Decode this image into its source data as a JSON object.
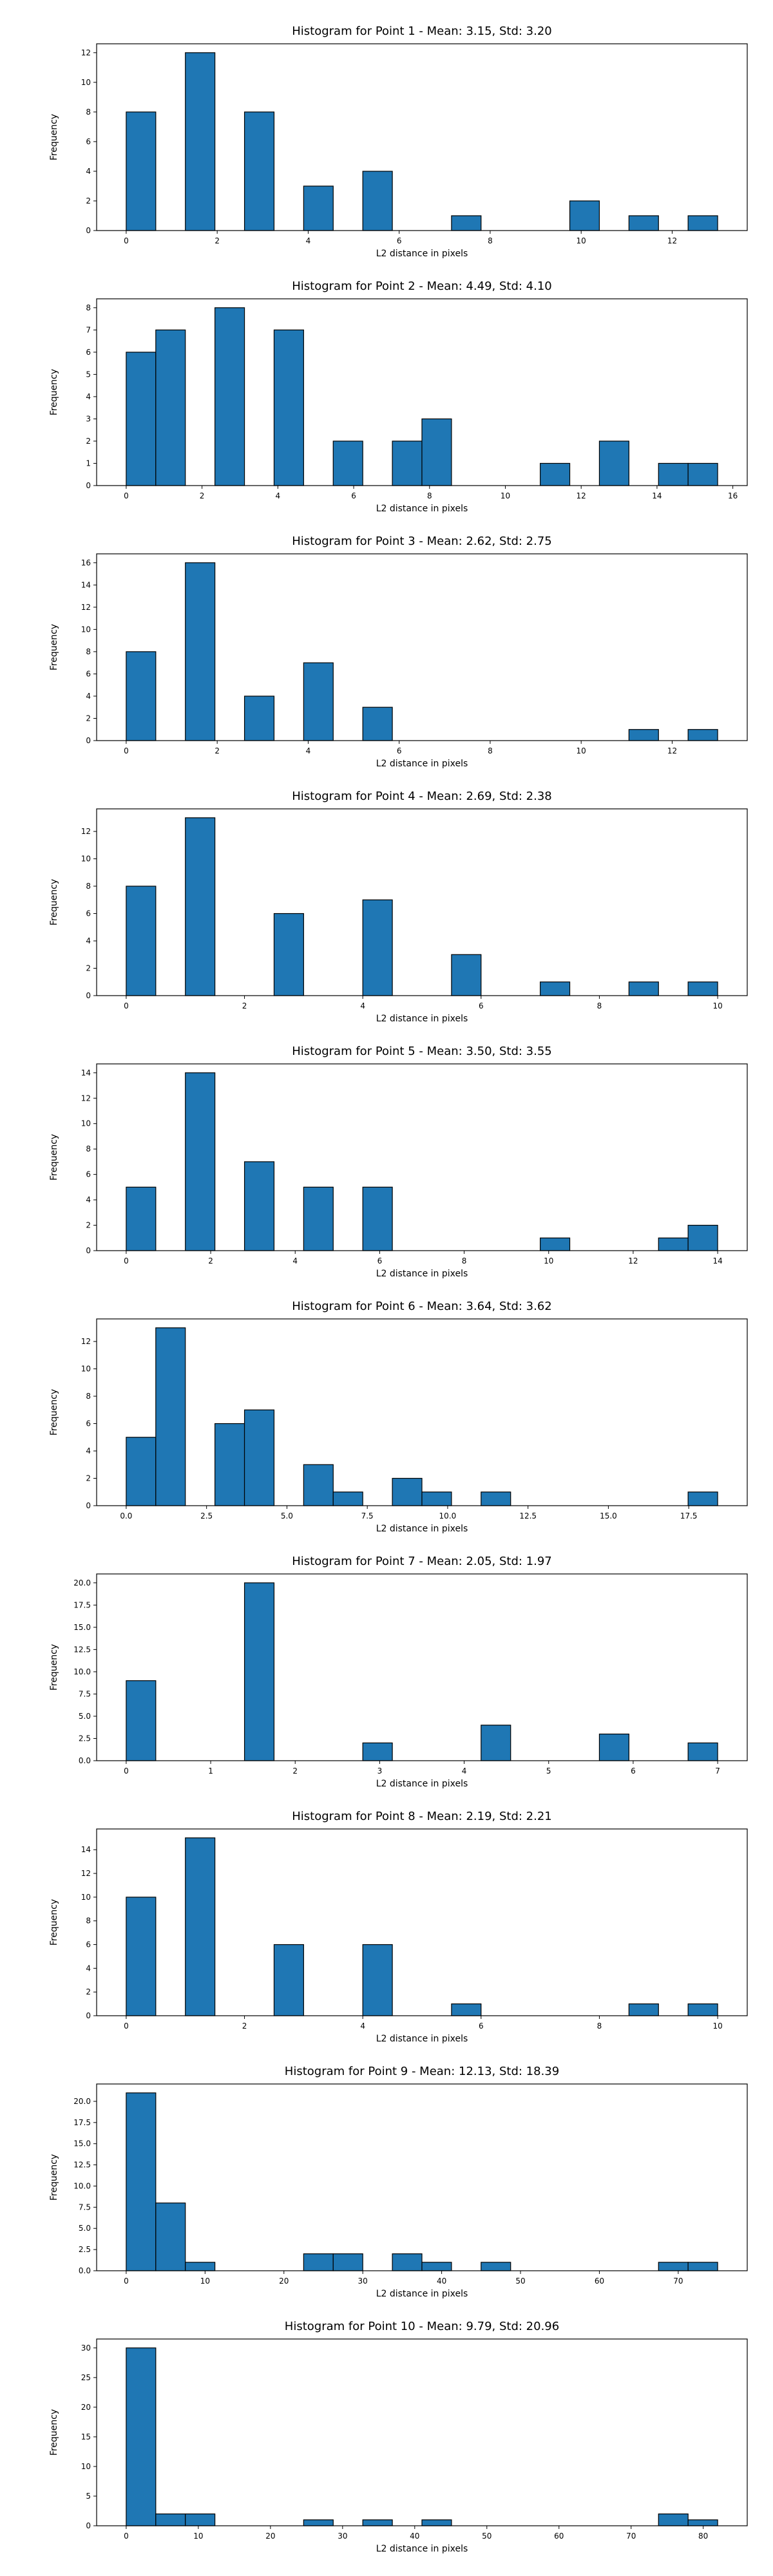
{
  "chart_data": [
    {
      "type": "bar",
      "title": "Histogram for Point 1 - Mean: 3.15, Std: 3.20",
      "xlabel": "L2 distance in pixels",
      "ylabel": "Frequency",
      "xlim": [
        -0.65,
        13.65
      ],
      "ylim": [
        0,
        12.6
      ],
      "xticks": [
        0,
        2,
        4,
        6,
        8,
        10,
        12
      ],
      "xtick_labels": [
        "0",
        "2",
        "4",
        "6",
        "8",
        "10",
        "12"
      ],
      "yticks": [
        0,
        2,
        4,
        6,
        8,
        10,
        12
      ],
      "ytick_labels": [
        "0",
        "2",
        "4",
        "6",
        "8",
        "10",
        "12"
      ],
      "bins": [
        {
          "x0": 0,
          "x1": 0.65,
          "count": 8
        },
        {
          "x0": 1.3,
          "x1": 1.95,
          "count": 12
        },
        {
          "x0": 2.6,
          "x1": 3.25,
          "count": 8
        },
        {
          "x0": 3.9,
          "x1": 4.55,
          "count": 3
        },
        {
          "x0": 5.2,
          "x1": 5.85,
          "count": 4
        },
        {
          "x0": 7.15,
          "x1": 7.8,
          "count": 1
        },
        {
          "x0": 9.75,
          "x1": 10.4,
          "count": 2
        },
        {
          "x0": 11.05,
          "x1": 11.7,
          "count": 1
        },
        {
          "x0": 12.35,
          "x1": 13.0,
          "count": 1
        }
      ]
    },
    {
      "type": "bar",
      "title": "Histogram for Point 2 - Mean: 4.49, Std: 4.10",
      "xlabel": "L2 distance in pixels",
      "ylabel": "Frequency",
      "xlim": [
        -0.78,
        16.38
      ],
      "ylim": [
        0,
        8.4
      ],
      "xticks": [
        0,
        2,
        4,
        6,
        8,
        10,
        12,
        14,
        16
      ],
      "xtick_labels": [
        "0",
        "2",
        "4",
        "6",
        "8",
        "10",
        "12",
        "14",
        "16"
      ],
      "yticks": [
        0,
        1,
        2,
        3,
        4,
        5,
        6,
        7,
        8
      ],
      "ytick_labels": [
        "0",
        "1",
        "2",
        "3",
        "4",
        "5",
        "6",
        "7",
        "8"
      ],
      "bins": [
        {
          "x0": 0,
          "x1": 0.78,
          "count": 6
        },
        {
          "x0": 0.78,
          "x1": 1.56,
          "count": 7
        },
        {
          "x0": 2.34,
          "x1": 3.12,
          "count": 8
        },
        {
          "x0": 3.9,
          "x1": 4.68,
          "count": 7
        },
        {
          "x0": 5.46,
          "x1": 6.24,
          "count": 2
        },
        {
          "x0": 7.02,
          "x1": 7.8,
          "count": 2
        },
        {
          "x0": 7.8,
          "x1": 8.58,
          "count": 3
        },
        {
          "x0": 10.92,
          "x1": 11.7,
          "count": 1
        },
        {
          "x0": 12.48,
          "x1": 13.26,
          "count": 2
        },
        {
          "x0": 14.04,
          "x1": 14.82,
          "count": 1
        },
        {
          "x0": 14.82,
          "x1": 15.6,
          "count": 1
        }
      ]
    },
    {
      "type": "bar",
      "title": "Histogram for Point 3 - Mean: 2.62, Std: 2.75",
      "xlabel": "L2 distance in pixels",
      "ylabel": "Frequency",
      "xlim": [
        -0.65,
        13.65
      ],
      "ylim": [
        0,
        16.8
      ],
      "xticks": [
        0,
        2,
        4,
        6,
        8,
        10,
        12
      ],
      "xtick_labels": [
        "0",
        "2",
        "4",
        "6",
        "8",
        "10",
        "12"
      ],
      "yticks": [
        0,
        2,
        4,
        6,
        8,
        10,
        12,
        14,
        16
      ],
      "ytick_labels": [
        "0",
        "2",
        "4",
        "6",
        "8",
        "10",
        "12",
        "14",
        "16"
      ],
      "bins": [
        {
          "x0": 0,
          "x1": 0.65,
          "count": 8
        },
        {
          "x0": 1.3,
          "x1": 1.95,
          "count": 16
        },
        {
          "x0": 2.6,
          "x1": 3.25,
          "count": 4
        },
        {
          "x0": 3.9,
          "x1": 4.55,
          "count": 7
        },
        {
          "x0": 5.2,
          "x1": 5.85,
          "count": 3
        },
        {
          "x0": 11.05,
          "x1": 11.7,
          "count": 1
        },
        {
          "x0": 12.35,
          "x1": 13.0,
          "count": 1
        }
      ]
    },
    {
      "type": "bar",
      "title": "Histogram for Point 4 - Mean: 2.69, Std: 2.38",
      "xlabel": "L2 distance in pixels",
      "ylabel": "Frequency",
      "xlim": [
        -0.5,
        10.5
      ],
      "ylim": [
        0,
        13.65
      ],
      "xticks": [
        0,
        2,
        4,
        6,
        8,
        10
      ],
      "xtick_labels": [
        "0",
        "2",
        "4",
        "6",
        "8",
        "10"
      ],
      "yticks": [
        0,
        2,
        4,
        6,
        8,
        10,
        12
      ],
      "ytick_labels": [
        "0",
        "2",
        "4",
        "6",
        "8",
        "10",
        "12"
      ],
      "bins": [
        {
          "x0": 0,
          "x1": 0.5,
          "count": 8
        },
        {
          "x0": 1.0,
          "x1": 1.5,
          "count": 13
        },
        {
          "x0": 2.5,
          "x1": 3.0,
          "count": 6
        },
        {
          "x0": 4.0,
          "x1": 4.5,
          "count": 7
        },
        {
          "x0": 5.5,
          "x1": 6.0,
          "count": 3
        },
        {
          "x0": 7.0,
          "x1": 7.5,
          "count": 1
        },
        {
          "x0": 8.5,
          "x1": 9.0,
          "count": 1
        },
        {
          "x0": 9.5,
          "x1": 10.0,
          "count": 1
        }
      ]
    },
    {
      "type": "bar",
      "title": "Histogram for Point 5 - Mean: 3.50, Std: 3.55",
      "xlabel": "L2 distance in pixels",
      "ylabel": "Frequency",
      "xlim": [
        -0.7,
        14.7
      ],
      "ylim": [
        0,
        14.7
      ],
      "xticks": [
        0,
        2,
        4,
        6,
        8,
        10,
        12,
        14
      ],
      "xtick_labels": [
        "0",
        "2",
        "4",
        "6",
        "8",
        "10",
        "12",
        "14"
      ],
      "yticks": [
        0,
        2,
        4,
        6,
        8,
        10,
        12,
        14
      ],
      "ytick_labels": [
        "0",
        "2",
        "4",
        "6",
        "8",
        "10",
        "12",
        "14"
      ],
      "bins": [
        {
          "x0": 0,
          "x1": 0.7,
          "count": 5
        },
        {
          "x0": 1.4,
          "x1": 2.1,
          "count": 14
        },
        {
          "x0": 2.8,
          "x1": 3.5,
          "count": 7
        },
        {
          "x0": 4.2,
          "x1": 4.9,
          "count": 5
        },
        {
          "x0": 5.6,
          "x1": 6.3,
          "count": 5
        },
        {
          "x0": 9.8,
          "x1": 10.5,
          "count": 1
        },
        {
          "x0": 12.6,
          "x1": 13.3,
          "count": 1
        },
        {
          "x0": 13.3,
          "x1": 14.0,
          "count": 2
        }
      ]
    },
    {
      "type": "bar",
      "title": "Histogram for Point 6 - Mean: 3.64, Std: 3.62",
      "xlabel": "L2 distance in pixels",
      "ylabel": "Frequency",
      "xlim": [
        -0.92,
        19.32
      ],
      "ylim": [
        0,
        13.65
      ],
      "xticks": [
        0,
        2.5,
        5,
        7.5,
        10,
        12.5,
        15,
        17.5
      ],
      "xtick_labels": [
        "0.0",
        "2.5",
        "5.0",
        "7.5",
        "10.0",
        "12.5",
        "15.0",
        "17.5"
      ],
      "yticks": [
        0,
        2,
        4,
        6,
        8,
        10,
        12
      ],
      "ytick_labels": [
        "0",
        "2",
        "4",
        "6",
        "8",
        "10",
        "12"
      ],
      "bins": [
        {
          "x0": 0,
          "x1": 0.92,
          "count": 5
        },
        {
          "x0": 0.92,
          "x1": 1.84,
          "count": 13
        },
        {
          "x0": 2.76,
          "x1": 3.68,
          "count": 6
        },
        {
          "x0": 3.68,
          "x1": 4.6,
          "count": 7
        },
        {
          "x0": 5.52,
          "x1": 6.44,
          "count": 3
        },
        {
          "x0": 6.44,
          "x1": 7.36,
          "count": 1
        },
        {
          "x0": 8.28,
          "x1": 9.2,
          "count": 2
        },
        {
          "x0": 9.2,
          "x1": 10.12,
          "count": 1
        },
        {
          "x0": 11.04,
          "x1": 11.96,
          "count": 1
        },
        {
          "x0": 17.48,
          "x1": 18.4,
          "count": 1
        }
      ]
    },
    {
      "type": "bar",
      "title": "Histogram for Point 7 - Mean: 2.05, Std: 1.97",
      "xlabel": "L2 distance in pixels",
      "ylabel": "Frequency",
      "xlim": [
        -0.35,
        7.35
      ],
      "ylim": [
        0,
        21
      ],
      "xticks": [
        0,
        1,
        2,
        3,
        4,
        5,
        6,
        7
      ],
      "xtick_labels": [
        "0",
        "1",
        "2",
        "3",
        "4",
        "5",
        "6",
        "7"
      ],
      "yticks": [
        0,
        2.5,
        5,
        7.5,
        10,
        12.5,
        15,
        17.5,
        20
      ],
      "ytick_labels": [
        "0.0",
        "2.5",
        "5.0",
        "7.5",
        "10.0",
        "12.5",
        "15.0",
        "17.5",
        "20.0"
      ],
      "bins": [
        {
          "x0": 0,
          "x1": 0.35,
          "count": 9
        },
        {
          "x0": 1.4,
          "x1": 1.75,
          "count": 20
        },
        {
          "x0": 2.8,
          "x1": 3.15,
          "count": 2
        },
        {
          "x0": 4.2,
          "x1": 4.55,
          "count": 4
        },
        {
          "x0": 5.6,
          "x1": 5.95,
          "count": 3
        },
        {
          "x0": 6.65,
          "x1": 7.0,
          "count": 2
        }
      ]
    },
    {
      "type": "bar",
      "title": "Histogram for Point 8 - Mean: 2.19, Std: 2.21",
      "xlabel": "L2 distance in pixels",
      "ylabel": "Frequency",
      "xlim": [
        -0.5,
        10.5
      ],
      "ylim": [
        0,
        15.75
      ],
      "xticks": [
        0,
        2,
        4,
        6,
        8,
        10
      ],
      "xtick_labels": [
        "0",
        "2",
        "4",
        "6",
        "8",
        "10"
      ],
      "yticks": [
        0,
        2,
        4,
        6,
        8,
        10,
        12,
        14
      ],
      "ytick_labels": [
        "0",
        "2",
        "4",
        "6",
        "8",
        "10",
        "12",
        "14"
      ],
      "bins": [
        {
          "x0": 0,
          "x1": 0.5,
          "count": 10
        },
        {
          "x0": 1.0,
          "x1": 1.5,
          "count": 15
        },
        {
          "x0": 2.5,
          "x1": 3.0,
          "count": 6
        },
        {
          "x0": 4.0,
          "x1": 4.5,
          "count": 6
        },
        {
          "x0": 5.5,
          "x1": 6.0,
          "count": 1
        },
        {
          "x0": 8.5,
          "x1": 9.0,
          "count": 1
        },
        {
          "x0": 9.5,
          "x1": 10.0,
          "count": 1
        }
      ]
    },
    {
      "type": "bar",
      "title": "Histogram for Point 9 - Mean: 12.13, Std: 18.39",
      "xlabel": "L2 distance in pixels",
      "ylabel": "Frequency",
      "xlim": [
        -3.75,
        78.75
      ],
      "ylim": [
        0,
        22.05
      ],
      "xticks": [
        0,
        10,
        20,
        30,
        40,
        50,
        60,
        70
      ],
      "xtick_labels": [
        "0",
        "10",
        "20",
        "30",
        "40",
        "50",
        "60",
        "70"
      ],
      "yticks": [
        0,
        2.5,
        5,
        7.5,
        10,
        12.5,
        15,
        17.5,
        20
      ],
      "ytick_labels": [
        "0.0",
        "2.5",
        "5.0",
        "7.5",
        "10.0",
        "12.5",
        "15.0",
        "17.5",
        "20.0"
      ],
      "bins": [
        {
          "x0": 0,
          "x1": 3.75,
          "count": 21
        },
        {
          "x0": 3.75,
          "x1": 7.5,
          "count": 8
        },
        {
          "x0": 7.5,
          "x1": 11.25,
          "count": 1
        },
        {
          "x0": 22.5,
          "x1": 26.25,
          "count": 2
        },
        {
          "x0": 26.25,
          "x1": 30.0,
          "count": 2
        },
        {
          "x0": 33.75,
          "x1": 37.5,
          "count": 2
        },
        {
          "x0": 37.5,
          "x1": 41.25,
          "count": 1
        },
        {
          "x0": 45.0,
          "x1": 48.75,
          "count": 1
        },
        {
          "x0": 67.5,
          "x1": 71.25,
          "count": 1
        },
        {
          "x0": 71.25,
          "x1": 75.0,
          "count": 1
        }
      ]
    },
    {
      "type": "bar",
      "title": "Histogram for Point 10 - Mean: 9.79, Std: 20.96",
      "xlabel": "L2 distance in pixels",
      "ylabel": "Frequency",
      "xlim": [
        -4.1,
        86.1
      ],
      "ylim": [
        0,
        31.5
      ],
      "xticks": [
        0,
        10,
        20,
        30,
        40,
        50,
        60,
        70,
        80
      ],
      "xtick_labels": [
        "0",
        "10",
        "20",
        "30",
        "40",
        "50",
        "60",
        "70",
        "80"
      ],
      "yticks": [
        0,
        5,
        10,
        15,
        20,
        25,
        30
      ],
      "ytick_labels": [
        "0",
        "5",
        "10",
        "15",
        "20",
        "25",
        "30"
      ],
      "bins": [
        {
          "x0": 0,
          "x1": 4.1,
          "count": 30
        },
        {
          "x0": 4.1,
          "x1": 8.2,
          "count": 2
        },
        {
          "x0": 8.2,
          "x1": 12.3,
          "count": 2
        },
        {
          "x0": 24.6,
          "x1": 28.7,
          "count": 1
        },
        {
          "x0": 32.8,
          "x1": 36.9,
          "count": 1
        },
        {
          "x0": 41.0,
          "x1": 45.1,
          "count": 1
        },
        {
          "x0": 73.8,
          "x1": 77.9,
          "count": 2
        },
        {
          "x0": 77.9,
          "x1": 82.0,
          "count": 1
        }
      ]
    }
  ]
}
